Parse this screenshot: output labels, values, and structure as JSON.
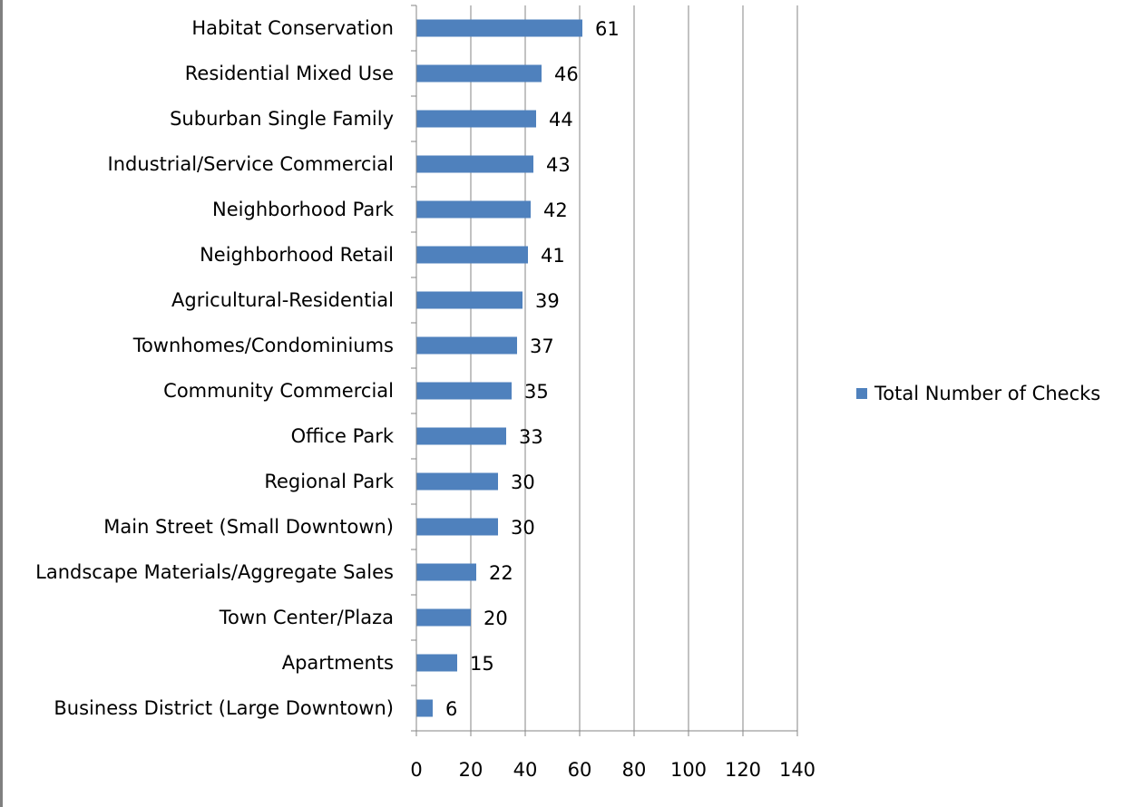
{
  "chart_data": {
    "type": "bar",
    "orientation": "horizontal",
    "categories": [
      "Habitat Conservation",
      "Residential Mixed Use",
      "Suburban Single Family",
      "Industrial/Service Commercial",
      "Neighborhood Park",
      "Neighborhood Retail",
      "Agricultural-Residential",
      "Townhomes/Condominiums",
      "Community Commercial",
      "Office Park",
      "Regional Park",
      "Main Street (Small Downtown)",
      "Landscape Materials/Aggregate Sales",
      "Town Center/Plaza",
      "Apartments",
      "Business District (Large Downtown)"
    ],
    "series": [
      {
        "name": "Total Number of Checks",
        "values": [
          61,
          46,
          44,
          43,
          42,
          41,
          39,
          37,
          35,
          33,
          30,
          30,
          22,
          20,
          15,
          6
        ],
        "color": "#4f81bd"
      }
    ],
    "xlim": [
      0,
      140
    ],
    "xticks": [
      0,
      20,
      40,
      60,
      80,
      100,
      120,
      140
    ],
    "title": "",
    "xlabel": "",
    "ylabel": "",
    "grid": "vertical major gridlines",
    "legend": "right",
    "colors": {
      "bar": "#4f81bd",
      "grid": "#868686",
      "axis": "#868686",
      "text": "#000000"
    }
  }
}
